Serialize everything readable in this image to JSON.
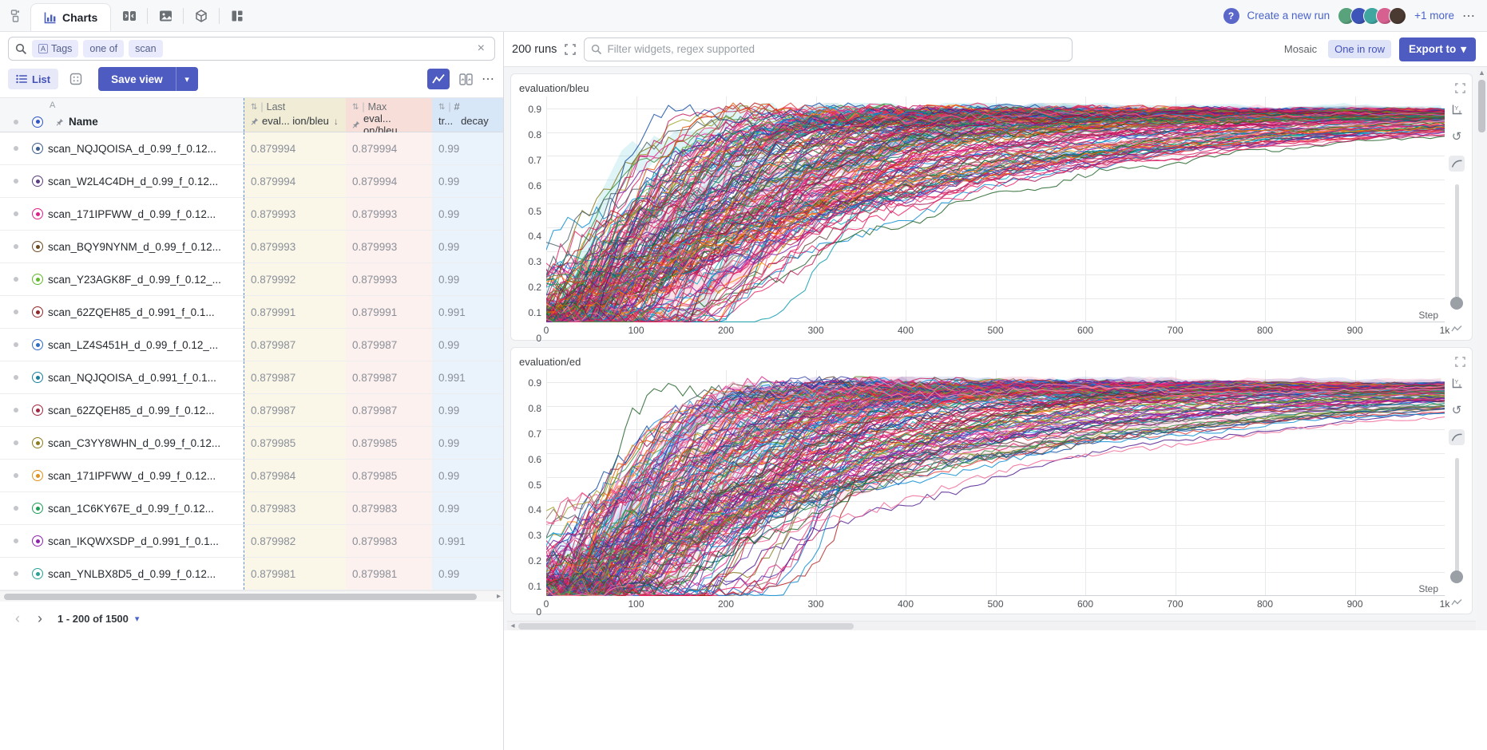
{
  "icons": {
    "chevron_down": "▾",
    "close": "×",
    "overflow": "⋯",
    "undo": "↺",
    "caret_right": "▸",
    "caret_left": "◂",
    "caret_up": "▲",
    "prev": "‹",
    "next": "›",
    "sort_down": "↓",
    "sort_pair": "⇅",
    "group_bar": "|"
  },
  "tabbar": {
    "charts_label": "Charts"
  },
  "topright": {
    "help_label": "?",
    "create_run_label": "Create a new run",
    "more_label": "+1 more",
    "avatars": [
      "#58a27c",
      "#3d55b8",
      "#3fa7a0",
      "#d6608f",
      "#4a3a32"
    ]
  },
  "search": {
    "pills": [
      {
        "icon": "A",
        "label": "Tags"
      },
      {
        "label": "one of"
      },
      {
        "label": "scan"
      }
    ]
  },
  "toolbar": {
    "list_label": "List",
    "save_view_label": "Save view"
  },
  "table": {
    "sort_letter": "A",
    "name_header": "Name",
    "groups": {
      "last": "Last",
      "max": "Max",
      "decay": "#"
    },
    "columns": {
      "last": "eval... ion/bleu",
      "max": "eval... on/bleu",
      "decay": "tr...",
      "decay2": "decay"
    },
    "rows": [
      {
        "name": "scan_NQJQOISA_d_0.99_f_0.12...",
        "color": "#3b5d8f",
        "last": "0.879994",
        "max": "0.879994",
        "decay": "0.99"
      },
      {
        "name": "scan_W2L4C4DH_d_0.99_f_0.12...",
        "color": "#5c3d82",
        "last": "0.879994",
        "max": "0.879994",
        "decay": "0.99"
      },
      {
        "name": "scan_171IPFWW_d_0.99_f_0.12...",
        "color": "#e0218a",
        "last": "0.879993",
        "max": "0.879993",
        "decay": "0.99"
      },
      {
        "name": "scan_BQY9NYNM_d_0.99_f_0.12...",
        "color": "#6e4a1f",
        "last": "0.879993",
        "max": "0.879993",
        "decay": "0.99"
      },
      {
        "name": "scan_Y23AGK8F_d_0.99_f_0.12_...",
        "color": "#62b82e",
        "last": "0.879992",
        "max": "0.879993",
        "decay": "0.99"
      },
      {
        "name": "scan_62ZQEH85_d_0.991_f_0.1...",
        "color": "#8f2727",
        "last": "0.879991",
        "max": "0.879991",
        "decay": "0.991"
      },
      {
        "name": "scan_LZ4S451H_d_0.99_f_0.12_...",
        "color": "#2f6cc4",
        "last": "0.879987",
        "max": "0.879987",
        "decay": "0.99"
      },
      {
        "name": "scan_NQJQOISA_d_0.991_f_0.1...",
        "color": "#1a7f9c",
        "last": "0.879987",
        "max": "0.879987",
        "decay": "0.991"
      },
      {
        "name": "scan_62ZQEH85_d_0.99_f_0.12...",
        "color": "#a1263f",
        "last": "0.879987",
        "max": "0.879987",
        "decay": "0.99"
      },
      {
        "name": "scan_C3YY8WHN_d_0.99_f_0.12...",
        "color": "#8c7a1d",
        "last": "0.879985",
        "max": "0.879985",
        "decay": "0.99"
      },
      {
        "name": "scan_171IPFWW_d_0.99_f_0.12...",
        "color": "#e1901f",
        "last": "0.879984",
        "max": "0.879985",
        "decay": "0.99"
      },
      {
        "name": "scan_1C6KY67E_d_0.99_f_0.12...",
        "color": "#1d9e57",
        "last": "0.879983",
        "max": "0.879983",
        "decay": "0.99"
      },
      {
        "name": "scan_IKQWXSDP_d_0.991_f_0.1...",
        "color": "#8e24aa",
        "last": "0.879982",
        "max": "0.879983",
        "decay": "0.991"
      },
      {
        "name": "scan_YNLBX8D5_d_0.99_f_0.12...",
        "color": "#2aa198",
        "last": "0.879981",
        "max": "0.879981",
        "decay": "0.99"
      }
    ]
  },
  "pagination": {
    "label": "1 - 200 of 1500"
  },
  "rightbar": {
    "runs_count": "200 runs",
    "filter_placeholder": "Filter widgets, regex supported",
    "mosaic_label": "Mosaic",
    "one_in_row_label": "One in row",
    "export_label": "Export to"
  },
  "chart_data": [
    {
      "type": "line",
      "title": "evaluation/bleu",
      "xlabel": "Step",
      "xlim": [
        0,
        1000
      ],
      "x_ticks": [
        "0",
        "100",
        "200",
        "300",
        "400",
        "500",
        "600",
        "700",
        "800",
        "900",
        "1k"
      ],
      "ylim": [
        0,
        0.95
      ],
      "y_ticks": [
        0.9,
        0.8,
        0.7,
        0.6,
        0.5,
        0.4,
        0.3,
        0.2,
        0.1,
        0
      ],
      "grid": true,
      "legend": "none",
      "series_count": 200,
      "series_model": {
        "shape": "saturating-rise",
        "start_value": 0,
        "asymptote_min": 0.862,
        "asymptote_max": 0.895,
        "tau_min": 55,
        "tau_max": 420,
        "noise": 0.05,
        "seed": 11,
        "pink_bias": 0.28
      },
      "envelope_bands": 6
    },
    {
      "type": "line",
      "title": "evaluation/ed",
      "xlabel": "Step",
      "xlim": [
        0,
        1000
      ],
      "x_ticks": [
        "0",
        "100",
        "200",
        "300",
        "400",
        "500",
        "600",
        "700",
        "800",
        "900",
        "1k"
      ],
      "ylim": [
        0,
        0.95
      ],
      "y_ticks": [
        0.9,
        0.8,
        0.7,
        0.6,
        0.5,
        0.4,
        0.3,
        0.2,
        0.1,
        0
      ],
      "grid": true,
      "legend": "none",
      "series_count": 200,
      "series_model": {
        "shape": "saturating-rise",
        "start_value": 0,
        "asymptote_min": 0.858,
        "asymptote_max": 0.893,
        "tau_min": 55,
        "tau_max": 430,
        "noise": 0.05,
        "seed": 77,
        "pink_bias": 0.3
      },
      "envelope_bands": 6
    }
  ],
  "palette": [
    "#d81b60",
    "#e91e8c",
    "#ad1457",
    "#8e24aa",
    "#6a1b9a",
    "#5e35b1",
    "#3949ab",
    "#1e88e5",
    "#039be5",
    "#00acc1",
    "#00897b",
    "#43a047",
    "#7cb342",
    "#9e9d24",
    "#fb8c00",
    "#6d4c41",
    "#8d6e63",
    "#757575",
    "#b71c1c",
    "#880e4f",
    "#4a148c",
    "#283593",
    "#0d47a1",
    "#006064",
    "#1b5e20",
    "#827717",
    "#e65100",
    "#c2185b",
    "#7b1fa2",
    "#512da8",
    "#1976d2",
    "#0288d1",
    "#0097a7",
    "#00796b",
    "#388e3c",
    "#689f38",
    "#f57c00",
    "#5d4037",
    "#455a64",
    "#e53935"
  ],
  "pink_palette": [
    "#f06292",
    "#ec407a",
    "#e91e63",
    "#d81b60",
    "#f48fb1",
    "#c2185b",
    "#e0218a"
  ]
}
